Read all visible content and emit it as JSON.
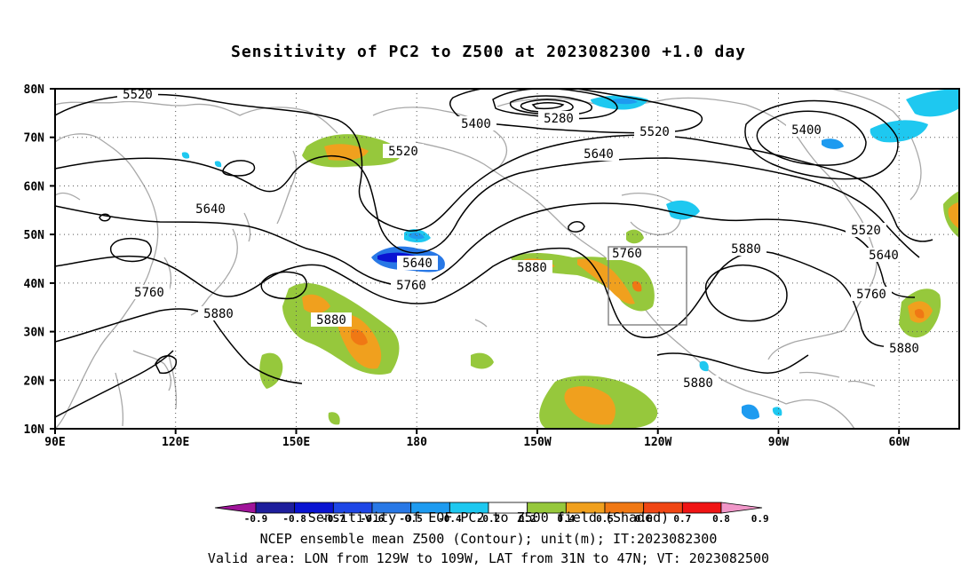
{
  "title": "Sensitivity of PC2 to Z500 at 2023082300 +1.0 day",
  "lat_labels": [
    "80N",
    "70N",
    "60N",
    "50N",
    "40N",
    "30N",
    "20N",
    "10N"
  ],
  "lon_labels": [
    "90E",
    "120E",
    "150E",
    "180",
    "150W",
    "120W",
    "90W",
    "60W"
  ],
  "contour_labels": [
    "5520",
    "5280",
    "5400",
    "5520",
    "5400",
    "5520",
    "5640",
    "5640",
    "5640",
    "5520",
    "5880",
    "5760",
    "5640",
    "5880",
    "5760",
    "5760",
    "5880",
    "5880",
    "5760",
    "5880",
    "5880"
  ],
  "colorbar": {
    "levels": [
      "-0.9",
      "-0.8",
      "-0.7",
      "-0.6",
      "-0.5",
      "-0.4",
      "-0.2",
      "0.2",
      "0.4",
      "0.5",
      "0.6",
      "0.7",
      "0.8",
      "0.9"
    ],
    "colors": [
      "#a0149a",
      "#1e1e9c",
      "#0a14d2",
      "#1e46e6",
      "#2878e6",
      "#1e9bf0",
      "#1ec8f0",
      "#ffffff",
      "#96c83c",
      "#f0a01e",
      "#f07814",
      "#f04614",
      "#f01414",
      "#f096c8"
    ],
    "title": "Sensitivity of EOF PC2 to Z500 field (Shaded)"
  },
  "footer": {
    "line1": "NCEP ensemble mean Z500 (Contour); unit(m); IT:2023082300",
    "line2": "Valid area: LON from 129W to 109W, LAT from 31N to 47N; VT: 2023082500"
  }
}
